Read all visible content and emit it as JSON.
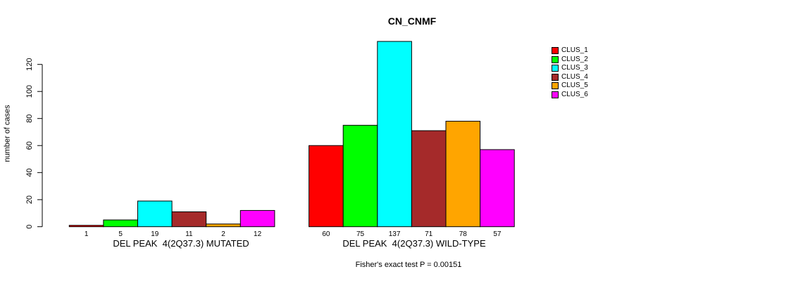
{
  "figure": {
    "title": "CN_CNMF",
    "footer": "Fisher's exact test P = 0.00151"
  },
  "chart_data": {
    "type": "bar",
    "title": "CN_CNMF",
    "xlabel": "",
    "ylabel": "number of cases",
    "ylim": [
      0,
      137
    ],
    "yticks": [
      0,
      20,
      40,
      60,
      80,
      100,
      120
    ],
    "grid": false,
    "legend_position": "right-outside",
    "categories": [
      "DEL PEAK  4(2Q37.3) MUTATED",
      "DEL PEAK  4(2Q37.3) WILD-TYPE"
    ],
    "series": [
      {
        "name": "CLUS_1",
        "color": "#ff0000",
        "values": [
          1,
          60
        ]
      },
      {
        "name": "CLUS_2",
        "color": "#00ff00",
        "values": [
          5,
          75
        ]
      },
      {
        "name": "CLUS_3",
        "color": "#00ffff",
        "values": [
          19,
          137
        ]
      },
      {
        "name": "CLUS_4",
        "color": "#a52a2a",
        "values": [
          11,
          71
        ]
      },
      {
        "name": "CLUS_5",
        "color": "#ffa500",
        "values": [
          2,
          78
        ]
      },
      {
        "name": "CLUS_6",
        "color": "#ff00ff",
        "values": [
          12,
          57
        ]
      }
    ],
    "bar_value_labels_shown": true,
    "annotation": "Fisher's exact test P = 0.00151"
  }
}
